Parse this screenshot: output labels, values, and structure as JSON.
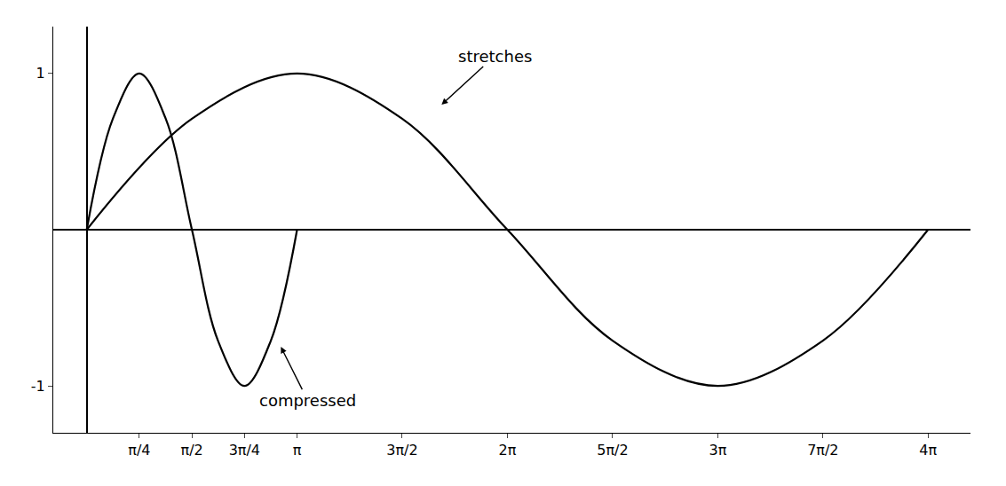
{
  "chart_data": {
    "type": "line",
    "series": [
      {
        "color": "#000000",
        "x": [
          0,
          0.39,
          0.785,
          1.18,
          1.571,
          1.96,
          2.356,
          2.75,
          3.1416
        ],
        "values": [
          0,
          0.71,
          1,
          0.71,
          0,
          -0.71,
          -1,
          -0.71,
          0
        ]
      },
      {
        "color": "#000000",
        "x": [
          0,
          1.571,
          3.1416,
          4.712,
          6.283,
          7.854,
          9.425,
          10.996,
          12.566
        ],
        "values": [
          0,
          0.71,
          1,
          0.71,
          0,
          -0.71,
          -1,
          -0.71,
          0
        ]
      }
    ],
    "xlim": [
      -0.5,
      13.2
    ],
    "xticks": [
      {
        "value": 0.785,
        "label": "π/4"
      },
      {
        "value": 1.571,
        "label": "π/2"
      },
      {
        "value": 2.356,
        "label": "3π/4"
      },
      {
        "value": 3.1416,
        "label": "π"
      },
      {
        "value": 4.712,
        "label": "3π/2"
      },
      {
        "value": 6.283,
        "label": "2π"
      },
      {
        "value": 7.854,
        "label": "5π/2"
      },
      {
        "value": 9.425,
        "label": "3π"
      },
      {
        "value": 10.996,
        "label": "7π/2"
      },
      {
        "value": 12.566,
        "label": "4π"
      }
    ],
    "ylim": [
      -1.3,
      1.3
    ],
    "yticks": [
      -1,
      1
    ],
    "annotations": [
      {
        "text": "stretches",
        "x": 5.3,
        "y": 0.8
      },
      {
        "text": "compressed",
        "x": 2.9,
        "y": -0.75
      }
    ],
    "grid": false
  }
}
